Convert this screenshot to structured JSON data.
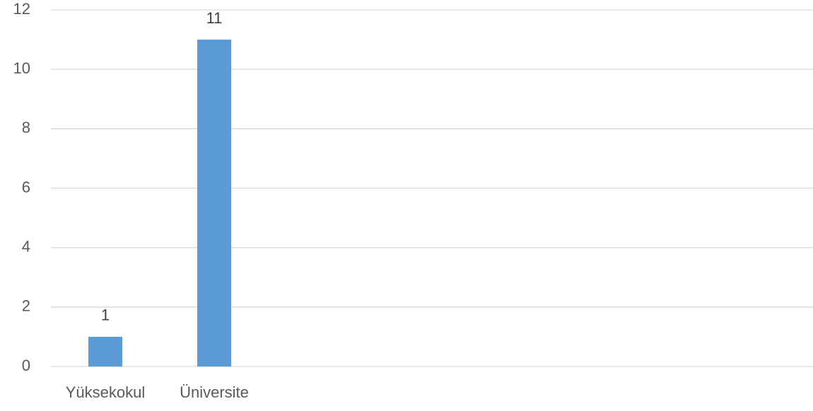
{
  "chart_data": {
    "type": "bar",
    "categories": [
      "Yüksekokul",
      "Üniversite",
      null,
      null,
      null,
      null,
      null
    ],
    "values": [
      1,
      11,
      null,
      null,
      null,
      null,
      null
    ],
    "color": "#5b9bd5",
    "ylim": [
      0,
      12
    ],
    "yticks": [
      0,
      2,
      4,
      6,
      8,
      10,
      12
    ],
    "grid": true,
    "data_labels": true
  }
}
